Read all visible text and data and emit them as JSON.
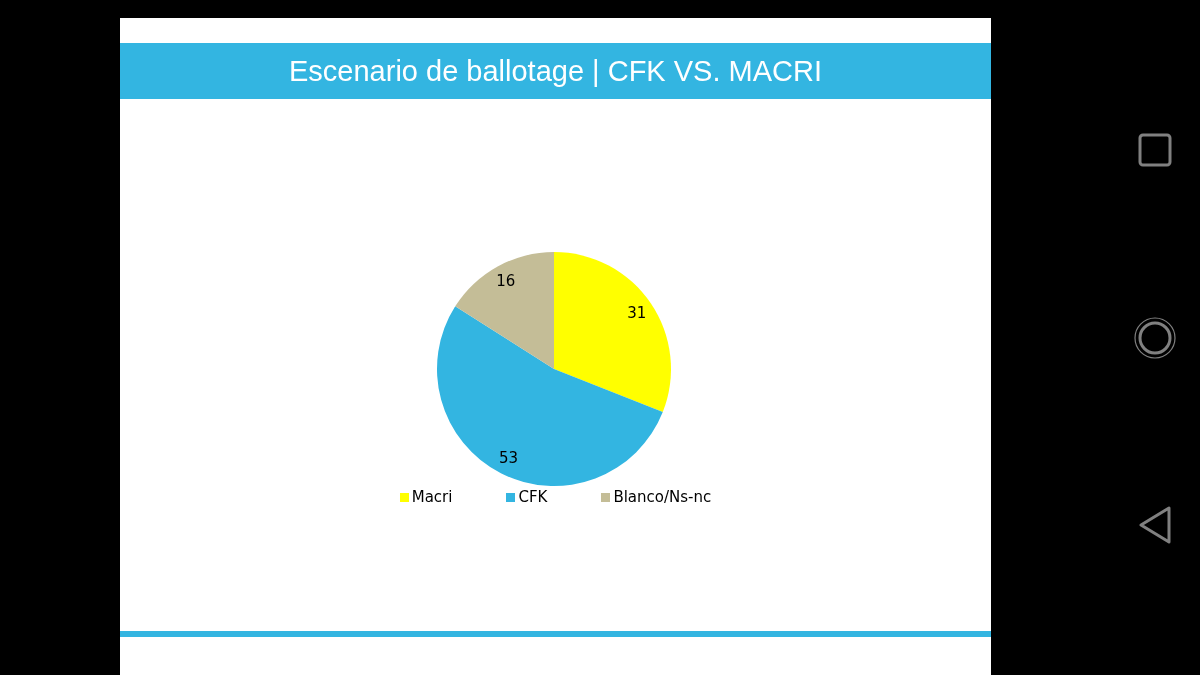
{
  "chart_data": {
    "type": "pie",
    "title": "Escenario de ballotage | CFK VS. MACRI",
    "categories": [
      "Macri",
      "CFK",
      "Blanco/Ns-nc"
    ],
    "values": [
      31,
      53,
      16
    ],
    "colors": [
      "#ffff00",
      "#33b5e1",
      "#c4bd97"
    ],
    "data_labels": true,
    "legend": "bottom"
  }
}
